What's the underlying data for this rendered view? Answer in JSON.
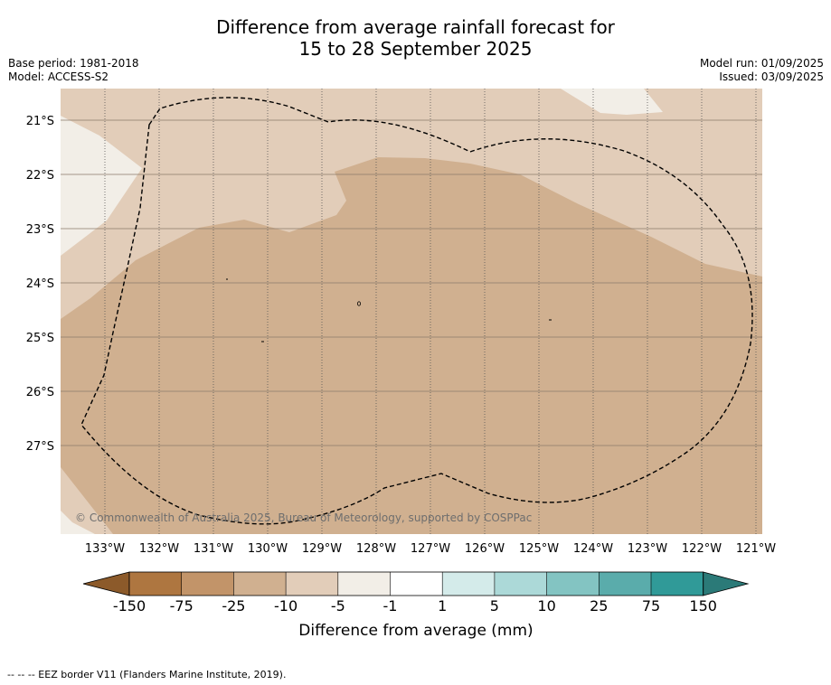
{
  "title": {
    "line1": "Difference from average rainfall forecast for",
    "line2": "15 to 28 September 2025"
  },
  "meta_left": {
    "base_period": "Base period: 1981-2018",
    "model": "Model: ACCESS-S2"
  },
  "meta_right": {
    "model_run": "Model run: 01/09/2025",
    "issued": "Issued: 03/09/2025"
  },
  "map": {
    "lat_labels": [
      "21°S",
      "22°S",
      "23°S",
      "24°S",
      "25°S",
      "26°S",
      "27°S"
    ],
    "lon_labels": [
      "133°W",
      "132°W",
      "131°W",
      "130°W",
      "129°W",
      "128°W",
      "127°W",
      "126°W",
      "125°W",
      "124°W",
      "123°W",
      "122°W",
      "121°W"
    ],
    "copyright": "© Commonwealth of Australia 2025, Bureau of Meteorology, supported by COSPPac",
    "colors": {
      "cat_m10_m25": "#d0b090",
      "cat_m5_m10": "#e2cdb9",
      "cat_m1_m5": "#f2eee7"
    }
  },
  "legend": {
    "tick_labels": [
      "-150",
      "-75",
      "-25",
      "-10",
      "-5",
      "-1",
      "1",
      "5",
      "10",
      "25",
      "75",
      "150"
    ],
    "colors": [
      "#8c5a2a",
      "#ae7640",
      "#c29469",
      "#d0b090",
      "#e2cdb9",
      "#f2eee7",
      "#ffffff",
      "#d4ebea",
      "#acd9d8",
      "#83c4c2",
      "#5aacab",
      "#309a98",
      "#2b7a78"
    ],
    "label": "Difference from average (mm)"
  },
  "footnote": "--  --  -- EEZ border V11 (Flanders Marine Institute, 2019)."
}
